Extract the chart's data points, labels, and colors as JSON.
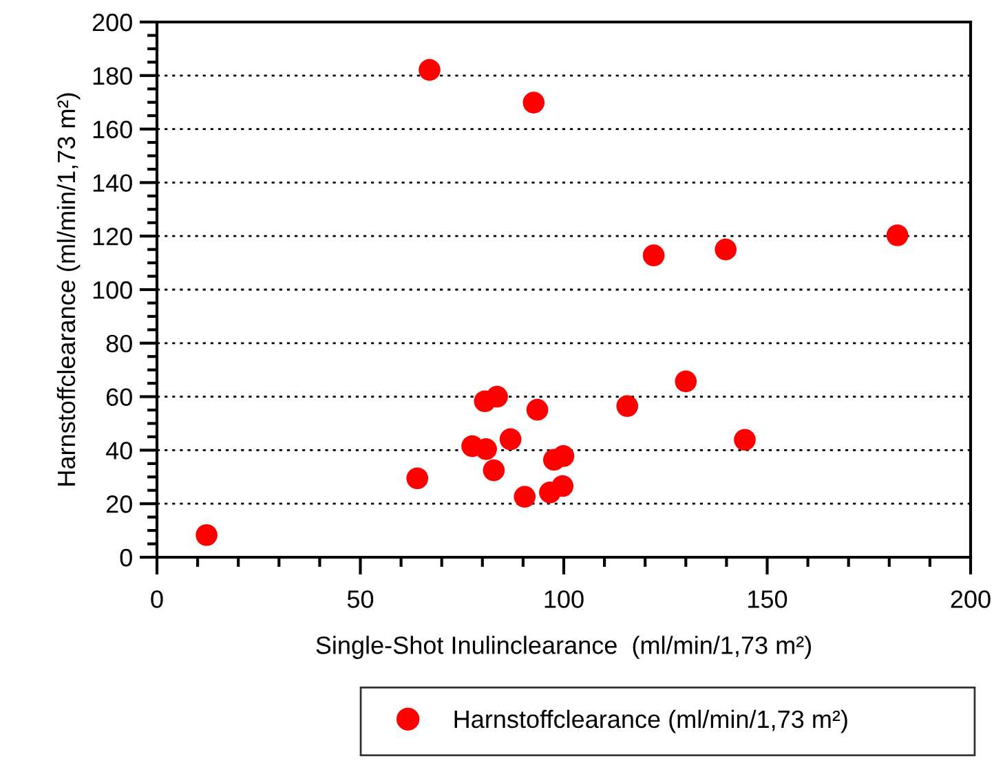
{
  "chart_data": {
    "type": "scatter",
    "xlabel": "Single-Shot Inulinclearance  (ml/min/1,73 m²)",
    "ylabel": "Harnstoffclearance (ml/min/1,73 m²)",
    "x": [
      67.0,
      92.6,
      122.1,
      139.8,
      182.0,
      130.0,
      115.6,
      80.6,
      83.6,
      93.5,
      77.5,
      80.9,
      86.9,
      82.8,
      64.0,
      97.6,
      99.9,
      144.5,
      90.4,
      96.6,
      99.7,
      12.2
    ],
    "series": [
      {
        "name": "Harnstoffclearance (ml/min/1,73 m²)",
        "color": "#ff0000",
        "values": [
          182.1,
          169.9,
          112.8,
          115.0,
          120.3,
          65.7,
          56.5,
          58.3,
          60.0,
          55.1,
          41.5,
          40.4,
          44.1,
          32.5,
          29.5,
          36.4,
          37.8,
          43.9,
          22.6,
          24.2,
          26.6,
          8.3
        ]
      }
    ],
    "marker": "circle",
    "xlim": [
      0,
      200
    ],
    "xticks": [
      0,
      {
        "value": 10,
        "label": null
      },
      {
        "value": 20,
        "label": null
      },
      {
        "value": 30,
        "label": null
      },
      {
        "value": 40,
        "label": null
      },
      50,
      {
        "value": 60,
        "label": null
      },
      {
        "value": 70,
        "label": null
      },
      {
        "value": 80,
        "label": null
      },
      {
        "value": 90,
        "label": null
      },
      100,
      {
        "value": 110,
        "label": null
      },
      {
        "value": 120,
        "label": null
      },
      {
        "value": 130,
        "label": null
      },
      {
        "value": 140,
        "label": null
      },
      150,
      {
        "value": 160,
        "label": null
      },
      {
        "value": 170,
        "label": null
      },
      {
        "value": 180,
        "label": null
      },
      {
        "value": 190,
        "label": null
      },
      200
    ],
    "ylim": [
      0,
      200
    ],
    "yticks": [
      0,
      {
        "value": 5,
        "label": null
      },
      {
        "value": 10,
        "label": null
      },
      {
        "value": 15,
        "label": null
      },
      20,
      {
        "value": 25,
        "label": null
      },
      {
        "value": 30,
        "label": null
      },
      {
        "value": 35,
        "label": null
      },
      40,
      {
        "value": 45,
        "label": null
      },
      {
        "value": 50,
        "label": null
      },
      {
        "value": 55,
        "label": null
      },
      60,
      {
        "value": 65,
        "label": null
      },
      {
        "value": 70,
        "label": null
      },
      {
        "value": 75,
        "label": null
      },
      80,
      {
        "value": 85,
        "label": null
      },
      {
        "value": 90,
        "label": null
      },
      {
        "value": 95,
        "label": null
      },
      100,
      {
        "value": 105,
        "label": null
      },
      {
        "value": 110,
        "label": null
      },
      {
        "value": 115,
        "label": null
      },
      120,
      {
        "value": 125,
        "label": null
      },
      {
        "value": 130,
        "label": null
      },
      {
        "value": 135,
        "label": null
      },
      140,
      {
        "value": 145,
        "label": null
      },
      {
        "value": 150,
        "label": null
      },
      {
        "value": 155,
        "label": null
      },
      160,
      {
        "value": 165,
        "label": null
      },
      {
        "value": 170,
        "label": null
      },
      {
        "value": 175,
        "label": null
      },
      180,
      {
        "value": 185,
        "label": null
      },
      {
        "value": 190,
        "label": null
      },
      {
        "value": 195,
        "label": null
      },
      200
    ],
    "grid": "y",
    "legend": "bottom"
  }
}
